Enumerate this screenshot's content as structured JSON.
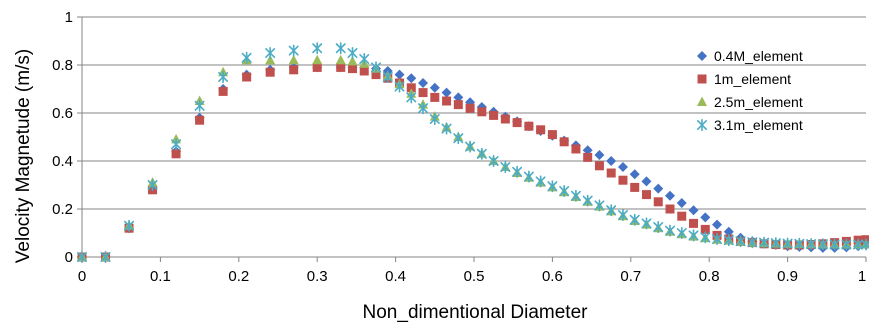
{
  "chart_data": {
    "type": "scatter",
    "title": "",
    "xlabel": "Non_dimentional Diameter",
    "ylabel": "Velocity Magnetude (m/s)",
    "xlim": [
      0,
      1
    ],
    "ylim": [
      0,
      1
    ],
    "xticks": [
      "0",
      "0.1",
      "0.2",
      "0.3",
      "0.4",
      "0.5",
      "0.6",
      "0.7",
      "0.8",
      "0.9",
      "1"
    ],
    "yticks": [
      "0",
      "0.2",
      "0.4",
      "0.6",
      "0.8",
      "1"
    ],
    "grid": "horizontal",
    "legend_position": "right",
    "series": [
      {
        "name": "0.4M_element",
        "marker": "diamond",
        "color": "#4472C4",
        "points": [
          [
            0,
            0
          ],
          [
            0.03,
            0
          ],
          [
            0.06,
            0.12
          ],
          [
            0.09,
            0.29
          ],
          [
            0.12,
            0.44
          ],
          [
            0.15,
            0.58
          ],
          [
            0.18,
            0.7
          ],
          [
            0.21,
            0.76
          ],
          [
            0.24,
            0.78
          ],
          [
            0.27,
            0.79
          ],
          [
            0.3,
            0.79
          ],
          [
            0.33,
            0.79
          ],
          [
            0.345,
            0.79
          ],
          [
            0.36,
            0.79
          ],
          [
            0.375,
            0.785
          ],
          [
            0.39,
            0.775
          ],
          [
            0.405,
            0.76
          ],
          [
            0.42,
            0.745
          ],
          [
            0.435,
            0.725
          ],
          [
            0.45,
            0.705
          ],
          [
            0.465,
            0.685
          ],
          [
            0.48,
            0.665
          ],
          [
            0.495,
            0.645
          ],
          [
            0.51,
            0.625
          ],
          [
            0.525,
            0.605
          ],
          [
            0.54,
            0.585
          ],
          [
            0.555,
            0.565
          ],
          [
            0.57,
            0.545
          ],
          [
            0.585,
            0.525
          ],
          [
            0.6,
            0.505
          ],
          [
            0.615,
            0.485
          ],
          [
            0.63,
            0.465
          ],
          [
            0.645,
            0.445
          ],
          [
            0.66,
            0.425
          ],
          [
            0.675,
            0.4
          ],
          [
            0.69,
            0.375
          ],
          [
            0.705,
            0.345
          ],
          [
            0.72,
            0.315
          ],
          [
            0.735,
            0.285
          ],
          [
            0.75,
            0.255
          ],
          [
            0.765,
            0.225
          ],
          [
            0.78,
            0.195
          ],
          [
            0.795,
            0.165
          ],
          [
            0.81,
            0.135
          ],
          [
            0.825,
            0.105
          ],
          [
            0.84,
            0.08
          ],
          [
            0.855,
            0.065
          ],
          [
            0.87,
            0.055
          ],
          [
            0.885,
            0.05
          ],
          [
            0.9,
            0.045
          ],
          [
            0.915,
            0.042
          ],
          [
            0.93,
            0.04
          ],
          [
            0.945,
            0.038
          ],
          [
            0.96,
            0.038
          ],
          [
            0.975,
            0.04
          ],
          [
            0.99,
            0.045
          ],
          [
            1.0,
            0.05
          ]
        ]
      },
      {
        "name": "1m_element",
        "marker": "square",
        "color": "#C0504D",
        "points": [
          [
            0,
            0
          ],
          [
            0.03,
            0
          ],
          [
            0.06,
            0.12
          ],
          [
            0.09,
            0.28
          ],
          [
            0.12,
            0.43
          ],
          [
            0.15,
            0.57
          ],
          [
            0.18,
            0.69
          ],
          [
            0.21,
            0.75
          ],
          [
            0.24,
            0.77
          ],
          [
            0.27,
            0.78
          ],
          [
            0.3,
            0.79
          ],
          [
            0.33,
            0.79
          ],
          [
            0.345,
            0.785
          ],
          [
            0.36,
            0.775
          ],
          [
            0.375,
            0.76
          ],
          [
            0.39,
            0.745
          ],
          [
            0.405,
            0.725
          ],
          [
            0.42,
            0.705
          ],
          [
            0.435,
            0.685
          ],
          [
            0.45,
            0.665
          ],
          [
            0.465,
            0.65
          ],
          [
            0.48,
            0.635
          ],
          [
            0.495,
            0.62
          ],
          [
            0.51,
            0.605
          ],
          [
            0.525,
            0.59
          ],
          [
            0.54,
            0.575
          ],
          [
            0.555,
            0.56
          ],
          [
            0.57,
            0.545
          ],
          [
            0.585,
            0.53
          ],
          [
            0.6,
            0.51
          ],
          [
            0.615,
            0.48
          ],
          [
            0.63,
            0.45
          ],
          [
            0.645,
            0.415
          ],
          [
            0.66,
            0.38
          ],
          [
            0.675,
            0.35
          ],
          [
            0.69,
            0.32
          ],
          [
            0.705,
            0.29
          ],
          [
            0.72,
            0.26
          ],
          [
            0.735,
            0.23
          ],
          [
            0.75,
            0.2
          ],
          [
            0.765,
            0.17
          ],
          [
            0.78,
            0.14
          ],
          [
            0.795,
            0.115
          ],
          [
            0.81,
            0.09
          ],
          [
            0.825,
            0.075
          ],
          [
            0.84,
            0.065
          ],
          [
            0.855,
            0.06
          ],
          [
            0.87,
            0.055
          ],
          [
            0.885,
            0.052
          ],
          [
            0.9,
            0.05
          ],
          [
            0.915,
            0.05
          ],
          [
            0.93,
            0.052
          ],
          [
            0.945,
            0.055
          ],
          [
            0.96,
            0.06
          ],
          [
            0.975,
            0.065
          ],
          [
            0.99,
            0.07
          ],
          [
            1.0,
            0.072
          ]
        ]
      },
      {
        "name": "2.5m_element",
        "marker": "triangle",
        "color": "#9BBB59",
        "points": [
          [
            0,
            0
          ],
          [
            0.03,
            0
          ],
          [
            0.06,
            0.13
          ],
          [
            0.09,
            0.31
          ],
          [
            0.12,
            0.49
          ],
          [
            0.15,
            0.65
          ],
          [
            0.18,
            0.77
          ],
          [
            0.21,
            0.82
          ],
          [
            0.24,
            0.82
          ],
          [
            0.27,
            0.82
          ],
          [
            0.3,
            0.82
          ],
          [
            0.33,
            0.82
          ],
          [
            0.345,
            0.815
          ],
          [
            0.36,
            0.805
          ],
          [
            0.375,
            0.785
          ],
          [
            0.39,
            0.755
          ],
          [
            0.405,
            0.72
          ],
          [
            0.42,
            0.68
          ],
          [
            0.435,
            0.635
          ],
          [
            0.45,
            0.585
          ],
          [
            0.465,
            0.54
          ],
          [
            0.48,
            0.5
          ],
          [
            0.495,
            0.46
          ],
          [
            0.51,
            0.43
          ],
          [
            0.525,
            0.4
          ],
          [
            0.54,
            0.375
          ],
          [
            0.555,
            0.35
          ],
          [
            0.57,
            0.33
          ],
          [
            0.585,
            0.31
          ],
          [
            0.6,
            0.29
          ],
          [
            0.615,
            0.27
          ],
          [
            0.63,
            0.25
          ],
          [
            0.645,
            0.23
          ],
          [
            0.66,
            0.21
          ],
          [
            0.675,
            0.19
          ],
          [
            0.69,
            0.17
          ],
          [
            0.705,
            0.15
          ],
          [
            0.72,
            0.135
          ],
          [
            0.735,
            0.12
          ],
          [
            0.75,
            0.105
          ],
          [
            0.765,
            0.095
          ],
          [
            0.78,
            0.085
          ],
          [
            0.795,
            0.078
          ],
          [
            0.81,
            0.072
          ],
          [
            0.825,
            0.068
          ],
          [
            0.84,
            0.064
          ],
          [
            0.855,
            0.06
          ],
          [
            0.87,
            0.058
          ],
          [
            0.885,
            0.056
          ],
          [
            0.9,
            0.055
          ],
          [
            0.915,
            0.054
          ],
          [
            0.93,
            0.053
          ],
          [
            0.945,
            0.052
          ],
          [
            0.96,
            0.052
          ],
          [
            0.975,
            0.052
          ],
          [
            0.99,
            0.052
          ],
          [
            1.0,
            0.052
          ]
        ]
      },
      {
        "name": "3.1m_element",
        "marker": "star",
        "color": "#4BACC6",
        "points": [
          [
            0,
            0
          ],
          [
            0.03,
            0
          ],
          [
            0.06,
            0.13
          ],
          [
            0.09,
            0.3
          ],
          [
            0.12,
            0.47
          ],
          [
            0.15,
            0.63
          ],
          [
            0.18,
            0.75
          ],
          [
            0.21,
            0.83
          ],
          [
            0.24,
            0.85
          ],
          [
            0.27,
            0.86
          ],
          [
            0.3,
            0.87
          ],
          [
            0.33,
            0.87
          ],
          [
            0.345,
            0.85
          ],
          [
            0.36,
            0.825
          ],
          [
            0.375,
            0.79
          ],
          [
            0.39,
            0.75
          ],
          [
            0.405,
            0.71
          ],
          [
            0.42,
            0.665
          ],
          [
            0.435,
            0.62
          ],
          [
            0.45,
            0.575
          ],
          [
            0.465,
            0.535
          ],
          [
            0.48,
            0.495
          ],
          [
            0.495,
            0.46
          ],
          [
            0.51,
            0.43
          ],
          [
            0.525,
            0.4
          ],
          [
            0.54,
            0.375
          ],
          [
            0.555,
            0.355
          ],
          [
            0.57,
            0.335
          ],
          [
            0.585,
            0.315
          ],
          [
            0.6,
            0.295
          ],
          [
            0.615,
            0.275
          ],
          [
            0.63,
            0.255
          ],
          [
            0.645,
            0.235
          ],
          [
            0.66,
            0.215
          ],
          [
            0.675,
            0.195
          ],
          [
            0.69,
            0.175
          ],
          [
            0.705,
            0.155
          ],
          [
            0.72,
            0.14
          ],
          [
            0.735,
            0.125
          ],
          [
            0.75,
            0.11
          ],
          [
            0.765,
            0.1
          ],
          [
            0.78,
            0.09
          ],
          [
            0.795,
            0.082
          ],
          [
            0.81,
            0.075
          ],
          [
            0.825,
            0.07
          ],
          [
            0.84,
            0.066
          ],
          [
            0.855,
            0.062
          ],
          [
            0.87,
            0.06
          ],
          [
            0.885,
            0.058
          ],
          [
            0.9,
            0.056
          ],
          [
            0.915,
            0.055
          ],
          [
            0.93,
            0.054
          ],
          [
            0.945,
            0.053
          ],
          [
            0.96,
            0.052
          ],
          [
            0.975,
            0.052
          ],
          [
            0.99,
            0.052
          ],
          [
            1.0,
            0.052
          ]
        ]
      }
    ]
  }
}
